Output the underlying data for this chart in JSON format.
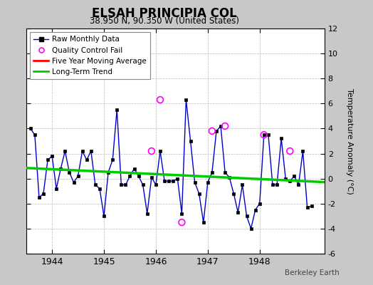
{
  "title": "ELSAH PRINCIPIA COL",
  "subtitle": "38.950 N, 90.350 W (United States)",
  "ylabel": "Temperature Anomaly (°C)",
  "credit": "Berkeley Earth",
  "ylim": [
    -6,
    12
  ],
  "yticks": [
    -6,
    -4,
    -2,
    0,
    2,
    4,
    6,
    8,
    10,
    12
  ],
  "xlim": [
    1943.5,
    1949.25
  ],
  "xticks": [
    1944,
    1945,
    1946,
    1947,
    1948
  ],
  "bg_color": "#c8c8c8",
  "plot_bg_color": "#ffffff",
  "raw_x": [
    1943.583,
    1943.667,
    1943.75,
    1943.833,
    1943.917,
    1944.0,
    1944.083,
    1944.167,
    1944.25,
    1944.333,
    1944.417,
    1944.5,
    1944.583,
    1944.667,
    1944.75,
    1944.833,
    1944.917,
    1945.0,
    1945.083,
    1945.167,
    1945.25,
    1945.333,
    1945.417,
    1945.5,
    1945.583,
    1945.667,
    1945.75,
    1945.833,
    1945.917,
    1946.0,
    1946.083,
    1946.167,
    1946.25,
    1946.333,
    1946.417,
    1946.5,
    1946.583,
    1946.667,
    1946.75,
    1946.833,
    1946.917,
    1947.0,
    1947.083,
    1947.167,
    1947.25,
    1947.333,
    1947.417,
    1947.5,
    1947.583,
    1947.667,
    1947.75,
    1947.833,
    1947.917,
    1948.0,
    1948.083,
    1948.167,
    1948.25,
    1948.333,
    1948.417,
    1948.5,
    1948.583,
    1948.667,
    1948.75,
    1948.833,
    1948.917,
    1949.0
  ],
  "raw_y": [
    4.0,
    3.5,
    -1.5,
    -1.2,
    1.5,
    1.8,
    -0.8,
    0.8,
    2.2,
    0.5,
    -0.3,
    0.2,
    2.2,
    1.5,
    2.2,
    -0.5,
    -0.8,
    -3.0,
    0.5,
    1.5,
    5.5,
    -0.5,
    -0.5,
    0.2,
    0.8,
    0.2,
    -0.5,
    -2.8,
    0.1,
    -0.5,
    2.2,
    -0.2,
    -0.2,
    -0.2,
    0.0,
    -2.8,
    6.3,
    3.0,
    -0.3,
    -1.2,
    -3.5,
    -0.3,
    0.5,
    3.8,
    4.2,
    0.5,
    0.1,
    -1.2,
    -2.7,
    -0.5,
    -3.0,
    -4.0,
    -2.5,
    -2.0,
    3.5,
    3.5,
    -0.5,
    -0.5,
    3.2,
    0.0,
    -0.2,
    0.2,
    -0.5,
    2.2,
    -2.3,
    -2.2
  ],
  "qc_fail_x": [
    1945.917,
    1946.083,
    1946.5,
    1947.083,
    1947.333,
    1948.083,
    1948.583
  ],
  "qc_fail_y": [
    2.2,
    6.3,
    -3.5,
    3.8,
    4.2,
    3.5,
    2.2
  ],
  "trend_x": [
    1943.5,
    1949.25
  ],
  "trend_y": [
    0.85,
    -0.28
  ],
  "raw_line_color": "#0000cc",
  "raw_marker_color": "#000000",
  "qc_color": "#ff00ff",
  "trend_color": "#00cc00",
  "moving_avg_color": "#ff0000",
  "legend_labels": [
    "Raw Monthly Data",
    "Quality Control Fail",
    "Five Year Moving Average",
    "Long-Term Trend"
  ]
}
